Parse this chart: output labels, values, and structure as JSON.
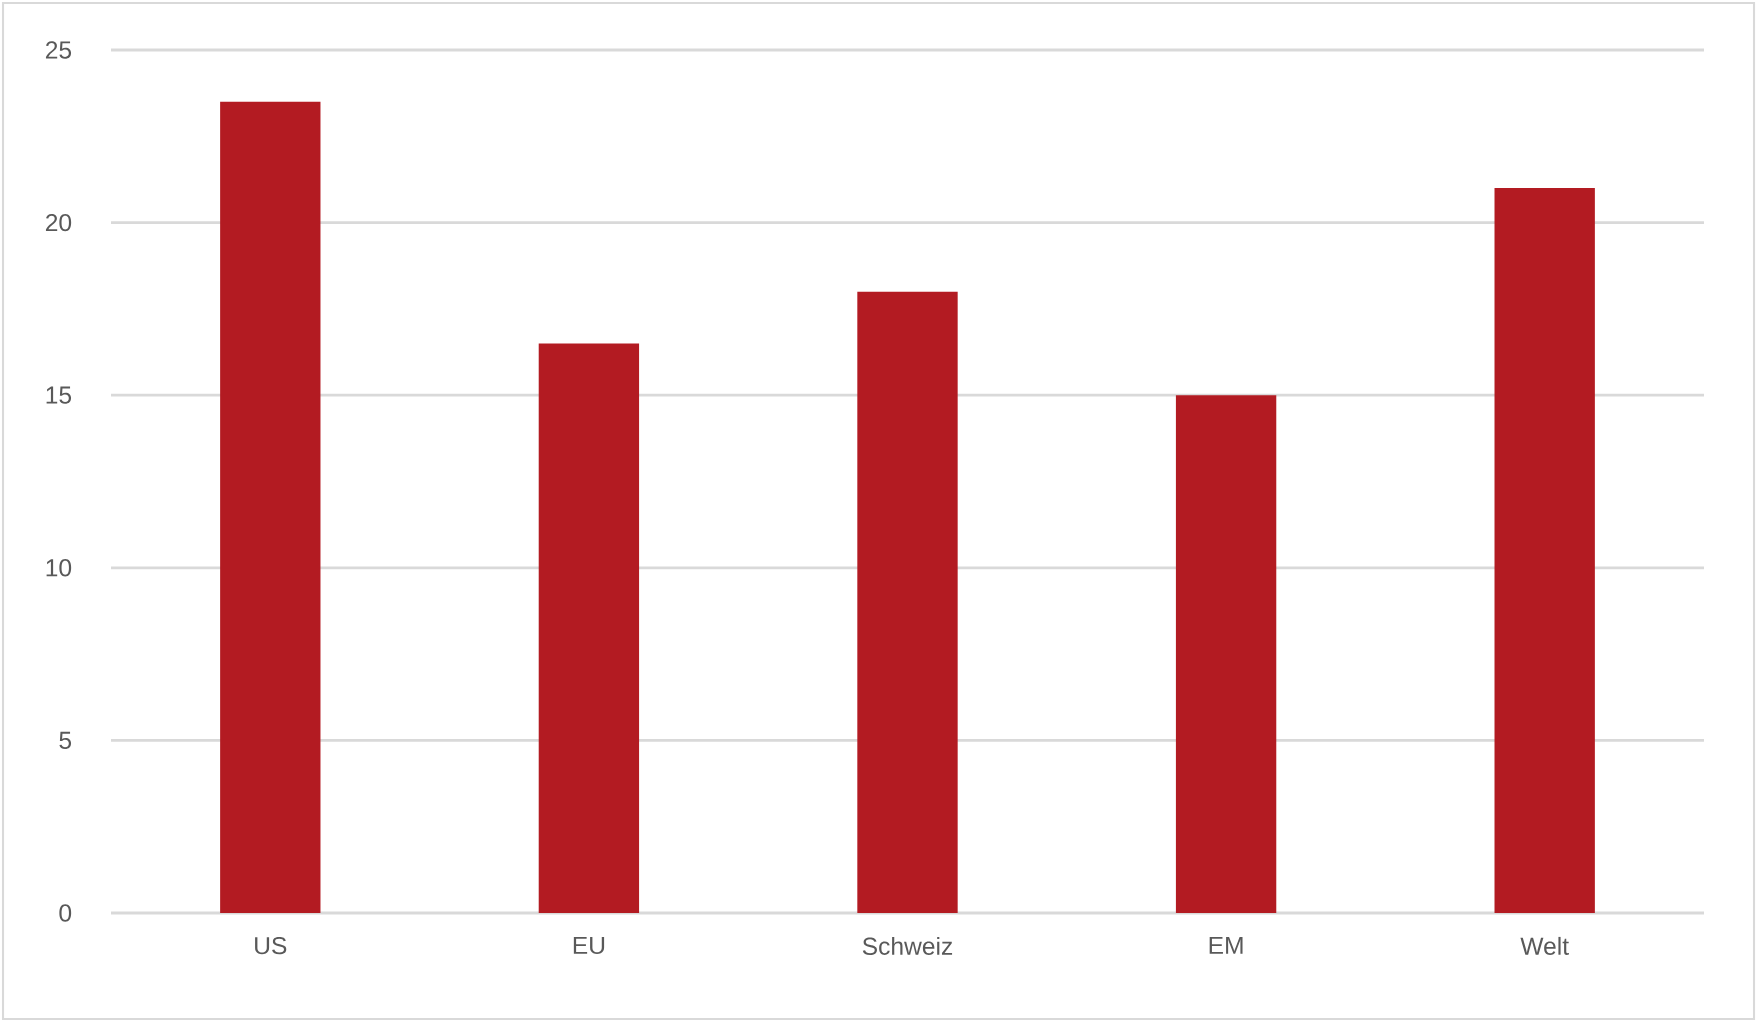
{
  "chart_data": {
    "type": "bar",
    "categories": [
      "US",
      "EU",
      "Schweiz",
      "EM",
      "Welt"
    ],
    "values": [
      23.5,
      16.5,
      18,
      15,
      21
    ],
    "color": "#b31b22",
    "ylim": [
      0,
      25
    ],
    "yticks": [
      0,
      5,
      10,
      15,
      20,
      25
    ],
    "grid": "y"
  }
}
